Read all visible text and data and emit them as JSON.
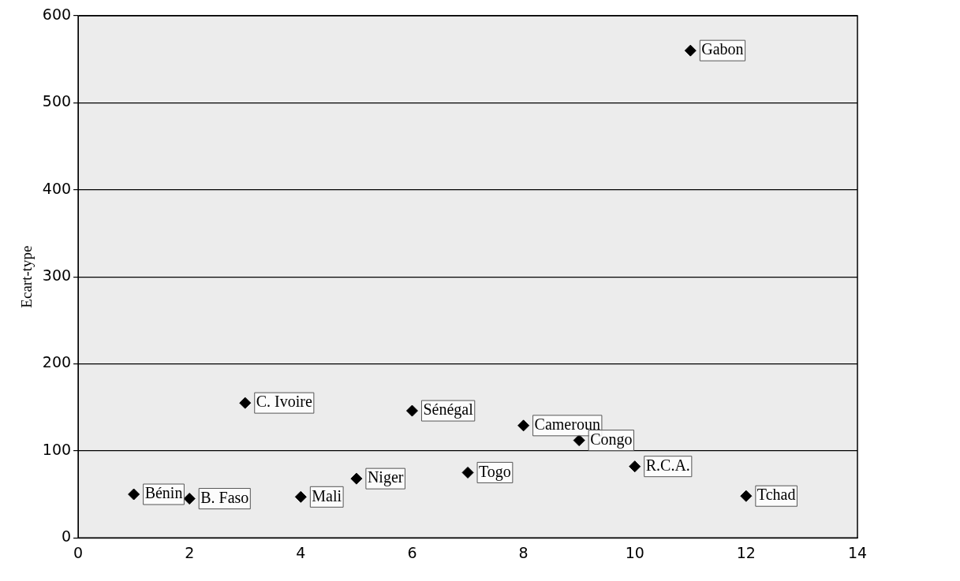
{
  "chart_data": {
    "type": "scatter",
    "ylabel": "Ecart-type",
    "x": [
      1,
      2,
      3,
      4,
      5,
      6,
      7,
      8,
      9,
      10,
      11,
      12
    ],
    "series": [
      {
        "color": "#000000",
        "values": [
          50,
          45,
          155,
          47,
          68,
          146,
          75,
          129,
          112,
          82,
          560,
          48
        ]
      }
    ],
    "xlim": [
      0,
      14
    ],
    "xticks": [
      0,
      2,
      4,
      6,
      8,
      10,
      12,
      14
    ],
    "ylim": [
      0,
      600
    ],
    "yticks": [
      0,
      100,
      200,
      300,
      400,
      500,
      600
    ],
    "grid": "y",
    "legend": false,
    "marker": "diamond",
    "annotations": [
      {
        "text": "Bénin",
        "x": 1,
        "y": 50
      },
      {
        "text": "B. Faso",
        "x": 2,
        "y": 45
      },
      {
        "text": "C. Ivoire",
        "x": 3,
        "y": 155
      },
      {
        "text": "Mali",
        "x": 4,
        "y": 47
      },
      {
        "text": "Niger",
        "x": 5,
        "y": 68
      },
      {
        "text": "Sénégal",
        "x": 6,
        "y": 146
      },
      {
        "text": "Togo",
        "x": 7,
        "y": 75
      },
      {
        "text": "Cameroun",
        "x": 8,
        "y": 129
      },
      {
        "text": "Congo",
        "x": 9,
        "y": 112
      },
      {
        "text": "R.C.A.",
        "x": 10,
        "y": 82
      },
      {
        "text": "Gabon",
        "x": 11,
        "y": 560
      },
      {
        "text": "Tchad",
        "x": 12,
        "y": 48
      }
    ]
  }
}
